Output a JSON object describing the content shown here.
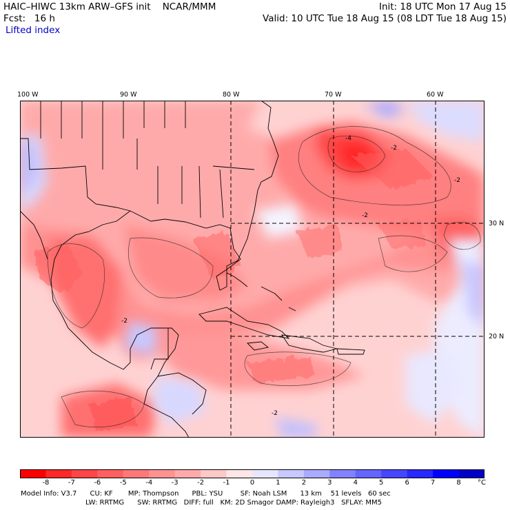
{
  "header": {
    "model_title": "HAIC–HIWC 13km ARW–GFS init    NCAR/MMM",
    "forecast": "Fcst:   16 h",
    "field": "Lifted index",
    "init": "Init: 18 UTC Mon 17 Aug 15",
    "valid": "Valid: 10 UTC Tue 18 Aug 15 (08 LDT Tue 18 Aug 15)"
  },
  "map": {
    "lon_labels": [
      "100 W",
      "90 W",
      "80 W",
      "70 W",
      "60 W"
    ],
    "lat_labels": [
      "30 N",
      "20 N"
    ],
    "contour_labels": [
      "-2",
      "-2",
      "-2",
      "-4",
      "-2",
      "-2"
    ]
  },
  "colorbar": {
    "ticks": [
      "-8",
      "-7",
      "-6",
      "-5",
      "-4",
      "-3",
      "-2",
      "-1",
      "0",
      "1",
      "2",
      "3",
      "4",
      "5",
      "6",
      "7",
      "8"
    ],
    "unit": "°C",
    "colors": [
      "#ff0000",
      "#ff2828",
      "#ff4646",
      "#ff5f5f",
      "#ff7878",
      "#ff9191",
      "#ffaaaa",
      "#ffc8c8",
      "#ffe6e6",
      "#e6e6ff",
      "#c8c8ff",
      "#aaaaff",
      "#8282ff",
      "#6464ff",
      "#4646ff",
      "#2828ff",
      "#0000ff",
      "#0000c8"
    ]
  },
  "footer": {
    "line1": "Model Info: V3.7      CU: KF       MP: Thompson      PBL: YSU        SF: Noah LSM      13 km    51 levels   60 sec",
    "line2": "LW: RRTMG      SW: RRTMG   DIFF: full   KM: 2D Smagor DAMP: Rayleigh3   SFLAY: MM5"
  }
}
